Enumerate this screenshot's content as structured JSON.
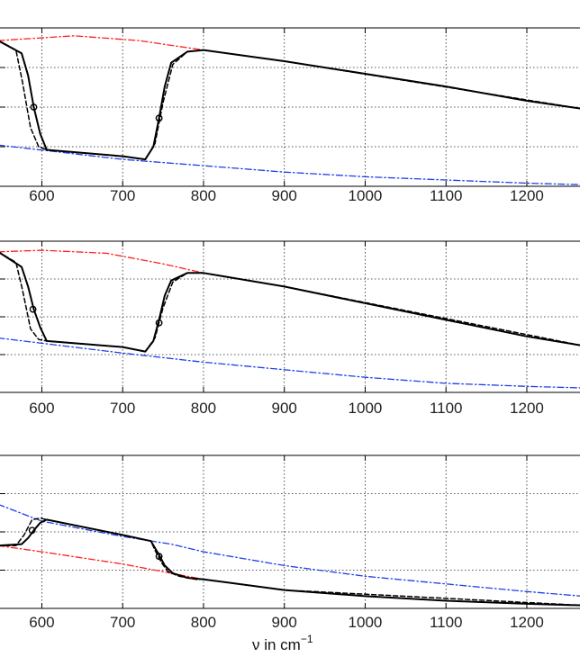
{
  "figure": {
    "xlabel_main": "ν in cm",
    "xlabel_superscript": "−1"
  },
  "colors": {
    "upper_envelope": "#ff2020",
    "lower_envelope": "#1f3fe6",
    "curve": "#000000",
    "grid": "#222222"
  },
  "chart_data": [
    {
      "type": "line",
      "panel": "top",
      "x_ticks": [
        600,
        700,
        800,
        900,
        1000,
        1100,
        1200
      ],
      "xlim": [
        546,
        1268
      ],
      "ylim": [
        0,
        1
      ],
      "grid": true,
      "series": [
        {
          "style": "red-dashdot",
          "x": [
            546,
            640,
            720,
            800,
            900,
            1000,
            1100,
            1200,
            1268
          ],
          "y": [
            0.92,
            0.95,
            0.92,
            0.86,
            0.79,
            0.71,
            0.63,
            0.54,
            0.49
          ]
        },
        {
          "style": "blue-dashdot",
          "x": [
            546,
            700,
            800,
            900,
            1000,
            1100,
            1200,
            1268
          ],
          "y": [
            0.26,
            0.17,
            0.13,
            0.09,
            0.06,
            0.04,
            0.02,
            0.01
          ]
        },
        {
          "style": "solid",
          "x": [
            546,
            575,
            583,
            590,
            598,
            606,
            700,
            728,
            738,
            745,
            752,
            760,
            780,
            800,
            900,
            1000,
            1100,
            1200,
            1268
          ],
          "y": [
            0.92,
            0.84,
            0.7,
            0.5,
            0.33,
            0.23,
            0.19,
            0.17,
            0.25,
            0.43,
            0.63,
            0.78,
            0.85,
            0.86,
            0.79,
            0.71,
            0.63,
            0.54,
            0.49
          ]
        },
        {
          "style": "dashed",
          "x": [
            546,
            568,
            576,
            586,
            596,
            606,
            700,
            728,
            740,
            750,
            762,
            780,
            800,
            900,
            1268
          ],
          "y": [
            0.92,
            0.86,
            0.66,
            0.37,
            0.25,
            0.23,
            0.19,
            0.17,
            0.27,
            0.53,
            0.77,
            0.85,
            0.86,
            0.79,
            0.49
          ]
        }
      ],
      "markers": [
        {
          "x": 590,
          "y": 0.5
        },
        {
          "x": 745,
          "y": 0.43
        }
      ]
    },
    {
      "type": "line",
      "panel": "middle",
      "x_ticks": [
        600,
        700,
        800,
        900,
        1000,
        1100,
        1200
      ],
      "xlim": [
        546,
        1268
      ],
      "ylim": [
        0,
        1
      ],
      "grid": true,
      "series": [
        {
          "style": "red-dashdot",
          "x": [
            546,
            600,
            680,
            750,
            800,
            900,
            1000,
            1100,
            1200,
            1268
          ],
          "y": [
            0.93,
            0.94,
            0.92,
            0.85,
            0.79,
            0.7,
            0.59,
            0.48,
            0.37,
            0.31
          ]
        },
        {
          "style": "blue-dashdot",
          "x": [
            546,
            700,
            800,
            900,
            1000,
            1100,
            1200,
            1268
          ],
          "y": [
            0.36,
            0.26,
            0.2,
            0.15,
            0.1,
            0.06,
            0.04,
            0.03
          ]
        },
        {
          "style": "solid",
          "x": [
            546,
            575,
            583,
            590,
            598,
            606,
            700,
            728,
            738,
            745,
            752,
            760,
            780,
            800,
            900,
            1000,
            1100,
            1200,
            1268
          ],
          "y": [
            0.93,
            0.83,
            0.7,
            0.55,
            0.43,
            0.34,
            0.3,
            0.27,
            0.34,
            0.48,
            0.64,
            0.74,
            0.79,
            0.79,
            0.7,
            0.59,
            0.48,
            0.37,
            0.31
          ]
        },
        {
          "style": "dashed",
          "x": [
            546,
            568,
            576,
            586,
            596,
            606,
            700,
            728,
            740,
            750,
            762,
            780,
            800,
            900,
            1268
          ],
          "y": [
            0.93,
            0.86,
            0.68,
            0.42,
            0.35,
            0.34,
            0.3,
            0.27,
            0.36,
            0.56,
            0.73,
            0.79,
            0.79,
            0.7,
            0.31
          ]
        }
      ],
      "markers": [
        {
          "x": 589,
          "y": 0.55
        },
        {
          "x": 745,
          "y": 0.46
        }
      ]
    },
    {
      "type": "line",
      "panel": "bottom",
      "x_ticks": [
        600,
        700,
        800,
        900,
        1000,
        1100,
        1200
      ],
      "xlim": [
        546,
        1268
      ],
      "ylim": [
        0,
        1
      ],
      "grid": true,
      "series": [
        {
          "style": "red-dashdot",
          "x": [
            546,
            600,
            700,
            780,
            800,
            900,
            1000,
            1100,
            1200,
            1268
          ],
          "y": [
            0.41,
            0.37,
            0.29,
            0.21,
            0.19,
            0.12,
            0.08,
            0.05,
            0.03,
            0.02
          ]
        },
        {
          "style": "blue-dashdot",
          "x": [
            546,
            600,
            700,
            760,
            800,
            900,
            1000,
            1100,
            1200,
            1268
          ],
          "y": [
            0.68,
            0.57,
            0.47,
            0.42,
            0.37,
            0.28,
            0.21,
            0.16,
            0.11,
            0.08
          ]
        },
        {
          "style": "solid",
          "x": [
            546,
            575,
            583,
            590,
            598,
            606,
            700,
            735,
            745,
            752,
            762,
            780,
            800,
            900,
            1000,
            1100,
            1200,
            1268
          ],
          "y": [
            0.41,
            0.42,
            0.46,
            0.51,
            0.56,
            0.58,
            0.48,
            0.44,
            0.35,
            0.28,
            0.23,
            0.2,
            0.19,
            0.12,
            0.08,
            0.05,
            0.03,
            0.02
          ]
        },
        {
          "style": "dashed",
          "x": [
            546,
            568,
            578,
            588,
            598,
            606,
            700,
            735,
            740,
            748,
            756,
            770,
            790,
            800,
            900,
            1268
          ],
          "y": [
            0.41,
            0.41,
            0.48,
            0.58,
            0.59,
            0.58,
            0.48,
            0.44,
            0.38,
            0.3,
            0.24,
            0.21,
            0.19,
            0.19,
            0.12,
            0.02
          ]
        }
      ],
      "markers": [
        {
          "x": 588,
          "y": 0.51
        },
        {
          "x": 745,
          "y": 0.34
        }
      ]
    }
  ]
}
